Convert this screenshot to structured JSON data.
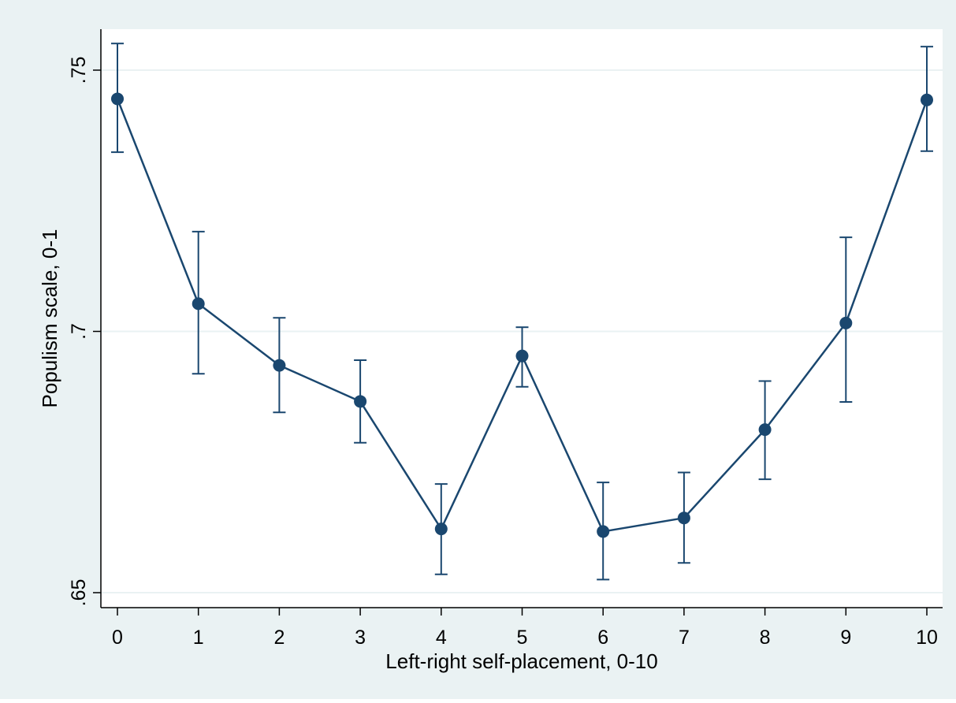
{
  "chart_data": {
    "type": "line",
    "xlabel": "Left-right self-placement, 0-10",
    "ylabel": "Populism scale, 0-1",
    "x": [
      0,
      1,
      2,
      3,
      4,
      5,
      6,
      7,
      8,
      9,
      10
    ],
    "series": [
      {
        "values": [
          0.7445,
          0.7053,
          0.6935,
          0.6866,
          0.6622,
          0.6953,
          0.6617,
          0.6643,
          0.6812,
          0.7016,
          0.7443
        ],
        "ci_lower": [
          0.7343,
          0.6919,
          0.6845,
          0.6787,
          0.6535,
          0.6894,
          0.6525,
          0.6557,
          0.6717,
          0.6865,
          0.7345
        ],
        "ci_upper": [
          0.7551,
          0.7191,
          0.7026,
          0.6945,
          0.6708,
          0.7008,
          0.6711,
          0.673,
          0.6905,
          0.718,
          0.7545
        ],
        "color": "#1a476f"
      }
    ],
    "xticks": [
      "0",
      "1",
      "2",
      "3",
      "4",
      "5",
      "6",
      "7",
      "8",
      "9",
      "10"
    ],
    "yticks": [
      {
        "value": 0.65,
        "label": ".65"
      },
      {
        "value": 0.7,
        "label": ".7"
      },
      {
        "value": 0.75,
        "label": ".75"
      }
    ],
    "xlim": [
      -0.2,
      10.2
    ],
    "ylim": [
      0.647,
      0.758
    ],
    "grid": "horizontal",
    "legend": "none",
    "colors": {
      "outer_background": "#eaf2f3",
      "plot_background": "#ffffff",
      "gridline": "#eaf2f3",
      "series": "#1a476f"
    }
  }
}
